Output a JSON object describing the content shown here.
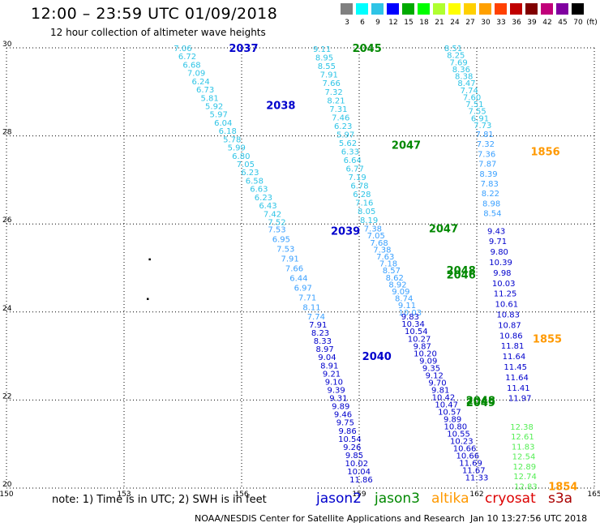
{
  "header": {
    "title": "12:00 – 23:59 UTC 01/09/2018",
    "subtitle": "12 hour collection of altimeter wave heights"
  },
  "colorbar": {
    "unit": "(ft)",
    "labels": [
      "3",
      "6",
      "9",
      "12",
      "15",
      "18",
      "21",
      "24",
      "27",
      "30",
      "33",
      "36",
      "39",
      "42",
      "45",
      "70"
    ],
    "colors": [
      "#808080",
      "#00ffff",
      "#2ec4e6",
      "#0000ff",
      "#00aa00",
      "#00ff00",
      "#b0ff30",
      "#ffff00",
      "#ffd000",
      "#ffa000",
      "#ff4000",
      "#c00000",
      "#800000",
      "#c0007a",
      "#8000a0",
      "#000000"
    ]
  },
  "map": {
    "lon_range": [
      150,
      165
    ],
    "lat_range": [
      20,
      30
    ],
    "lon_ticks": [
      "150",
      "153",
      "156",
      "159",
      "162",
      "165"
    ],
    "lat_ticks": [
      "20",
      "22",
      "24",
      "26",
      "28",
      "30"
    ],
    "gridlines": true
  },
  "footer": {
    "note": "note:  1) Time is in UTC;  2) SWH is in feet",
    "satellites": [
      {
        "name": "jason2",
        "color": "#0000cc"
      },
      {
        "name": "jason3",
        "color": "#008800"
      },
      {
        "name": "altika",
        "color": "#ff9900"
      },
      {
        "name": "cryosat",
        "color": "#dd0000"
      },
      {
        "name": "s3a",
        "color": "#aa0000"
      }
    ],
    "credit": "NOAA/NESDIS Center for Satellite Applications and Research",
    "timestamp": "Jan 10 13:27:56 UTC 2018"
  },
  "chart_data": {
    "type": "scatter",
    "title": "12:00 – 23:59 UTC 01/09/2018",
    "xlabel": "",
    "ylabel": "",
    "xlim": [
      150,
      165
    ],
    "ylim": [
      20,
      30
    ],
    "pass_labels": [
      {
        "text": "2037",
        "lon": 156.05,
        "lat": 30.0,
        "color": "#0000cc"
      },
      {
        "text": "2038",
        "lon": 157.0,
        "lat": 28.7,
        "color": "#0000cc"
      },
      {
        "text": "2039",
        "lon": 158.65,
        "lat": 25.85,
        "color": "#0000cc"
      },
      {
        "text": "2040",
        "lon": 159.45,
        "lat": 23.0,
        "color": "#0000cc"
      },
      {
        "text": "2045",
        "lon": 159.2,
        "lat": 30.0,
        "color": "#008800"
      },
      {
        "text": "2047",
        "lon": 160.2,
        "lat": 27.8,
        "color": "#008800"
      },
      {
        "text": "2047",
        "lon": 161.15,
        "lat": 25.9,
        "color": "#008800"
      },
      {
        "text": "2048",
        "lon": 161.6,
        "lat": 24.95,
        "color": "#008800"
      },
      {
        "text": "2046",
        "lon": 161.6,
        "lat": 24.85,
        "color": "#008800"
      },
      {
        "text": "2048",
        "lon": 162.1,
        "lat": 22.0,
        "color": "#008800"
      },
      {
        "text": "2049",
        "lon": 162.1,
        "lat": 21.95,
        "color": "#008800"
      },
      {
        "text": "1856",
        "lon": 163.75,
        "lat": 27.65,
        "color": "#ff9900"
      },
      {
        "text": "1855",
        "lon": 163.8,
        "lat": 23.4,
        "color": "#ff9900"
      },
      {
        "text": "1854",
        "lon": 164.2,
        "lat": 20.05,
        "color": "#ff9900"
      }
    ],
    "tracks": [
      {
        "name": "jason2",
        "color": "#2ec4e6",
        "start": [
          154.5,
          30.0
        ],
        "end": [
          156.9,
          26.05
        ],
        "values": [
          "7.06",
          "6.72",
          "6.68",
          "7.09",
          "6.24",
          "6.73",
          "5.81",
          "5.92",
          "5.97",
          "6.04",
          "6.18",
          "5.78",
          "5.99",
          "6.80",
          "7.05",
          "6.23",
          "6.58",
          "6.63",
          "6.23",
          "6.43",
          "7.42",
          "7.52"
        ]
      },
      {
        "name": "jason2",
        "color": "#3aa0ff",
        "start": [
          156.9,
          25.88
        ],
        "end": [
          157.9,
          23.9
        ],
        "values": [
          "7.53",
          "6.95",
          "7.53",
          "7.91",
          "7.66",
          "6.44",
          "6.97",
          "7.71",
          "8.11",
          "7.74"
        ]
      },
      {
        "name": "jason2",
        "color": "#0000cc",
        "start": [
          157.95,
          23.72
        ],
        "end": [
          159.05,
          20.2
        ],
        "values": [
          "7.91",
          "8.23",
          "8.33",
          "8.97",
          "9.04",
          "8.91",
          "9.21",
          "9.10",
          "9.39",
          "9.31",
          "9.89",
          "9.46",
          "9.75",
          "9.86",
          "10.54",
          "9.26",
          "9.85",
          "10.02",
          "10.04",
          "11.86"
        ]
      },
      {
        "name": "jason3",
        "color": "#2ec4e6",
        "start": [
          158.05,
          29.98
        ],
        "end": [
          159.25,
          26.1
        ],
        "values": [
          "9.11",
          "8.95",
          "8.55",
          "7.91",
          "7.66",
          "7.32",
          "8.21",
          "7.31",
          "7.46",
          "6.23",
          "5.97",
          "5.62",
          "6.33",
          "6.64",
          "6.77",
          "7.19",
          "6.78",
          "6.28",
          "7.16",
          "8.05",
          "8.19"
        ]
      },
      {
        "name": "jason3",
        "color": "#3aa0ff",
        "start": [
          159.35,
          25.9
        ],
        "end": [
          160.3,
          24.0
        ],
        "values": [
          "7.38",
          "7.05",
          "7.68",
          "7.38",
          "7.63",
          "7.18",
          "8.57",
          "8.62",
          "8.92",
          "9.09",
          "8.74",
          "9.11",
          "10.03"
        ]
      },
      {
        "name": "jason3",
        "color": "#0000cc",
        "start": [
          160.3,
          23.9
        ],
        "end": [
          162.0,
          20.25
        ],
        "values": [
          "9.83",
          "10.34",
          "10.54",
          "10.27",
          "9.87",
          "10.20",
          "9.09",
          "9.35",
          "9.12",
          "9.70",
          "9.81",
          "10.42",
          "10.47",
          "10.57",
          "9.89",
          "10.80",
          "10.55",
          "10.23",
          "10.66",
          "10.66",
          "11.69",
          "11.67",
          "11.33"
        ]
      },
      {
        "name": "altika",
        "color": "#2ec4e6",
        "start": [
          161.4,
          30.0
        ],
        "end": [
          162.15,
          28.25
        ],
        "values": [
          "8.51",
          "8.25",
          "7.69",
          "8.36",
          "8.38",
          "8.47",
          "7.74",
          "7.60",
          "7.51",
          "7.55",
          "6.91",
          "7.73"
        ]
      },
      {
        "name": "altika",
        "color": "#3aa0ff",
        "start": [
          162.2,
          28.05
        ],
        "end": [
          162.4,
          26.25
        ],
        "values": [
          "7.81",
          "7.32",
          "7.36",
          "7.87",
          "8.39",
          "7.83",
          "8.22",
          "8.98",
          "8.54"
        ]
      },
      {
        "name": "altika",
        "color": "#0000cc",
        "start": [
          162.5,
          25.85
        ],
        "end": [
          163.1,
          22.05
        ],
        "values": [
          "9.43",
          "9.71",
          "9.80",
          "10.39",
          "9.98",
          "10.03",
          "11.25",
          "10.61",
          "10.83",
          "10.87",
          "10.86",
          "11.81",
          "11.64",
          "11.45",
          "11.64",
          "11.41",
          "11.97"
        ]
      },
      {
        "name": "altika",
        "color": "#55ee55",
        "start": [
          163.15,
          21.4
        ],
        "end": [
          163.25,
          20.05
        ],
        "values": [
          "12.38",
          "12.61",
          "11.83",
          "12.54",
          "12.89",
          "12.74",
          "12.83"
        ]
      }
    ],
    "markers": [
      {
        "lon": 153.65,
        "lat": 25.2
      },
      {
        "lon": 153.6,
        "lat": 24.3
      }
    ]
  }
}
